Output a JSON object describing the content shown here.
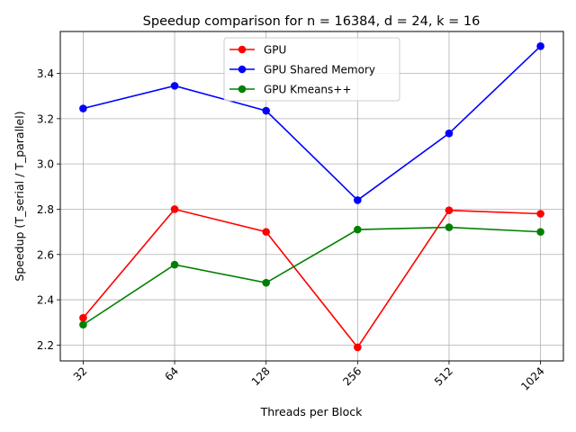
{
  "chart_data": {
    "type": "line",
    "title": "Speedup comparison for n = 16384, d = 24, k = 16",
    "xlabel": "Threads per Block",
    "ylabel": "Speedup (T_serial / T_parallel)",
    "categories": [
      "32",
      "64",
      "128",
      "256",
      "512",
      "1024"
    ],
    "ylim": [
      2.13,
      3.585
    ],
    "yticks": [
      "2.2",
      "2.4",
      "2.6",
      "2.8",
      "3.0",
      "3.2",
      "3.4"
    ],
    "grid": true,
    "legend_position": "top-center",
    "series": [
      {
        "name": "GPU",
        "color": "#ff0000",
        "values": [
          2.32,
          2.8,
          2.7,
          2.19,
          2.795,
          2.78
        ]
      },
      {
        "name": "GPU Shared Memory",
        "color": "#0000ff",
        "values": [
          3.245,
          3.345,
          3.235,
          2.84,
          3.135,
          3.52
        ]
      },
      {
        "name": "GPU Kmeans++",
        "color": "#008000",
        "values": [
          2.29,
          2.555,
          2.475,
          2.71,
          2.72,
          2.7
        ]
      }
    ]
  }
}
